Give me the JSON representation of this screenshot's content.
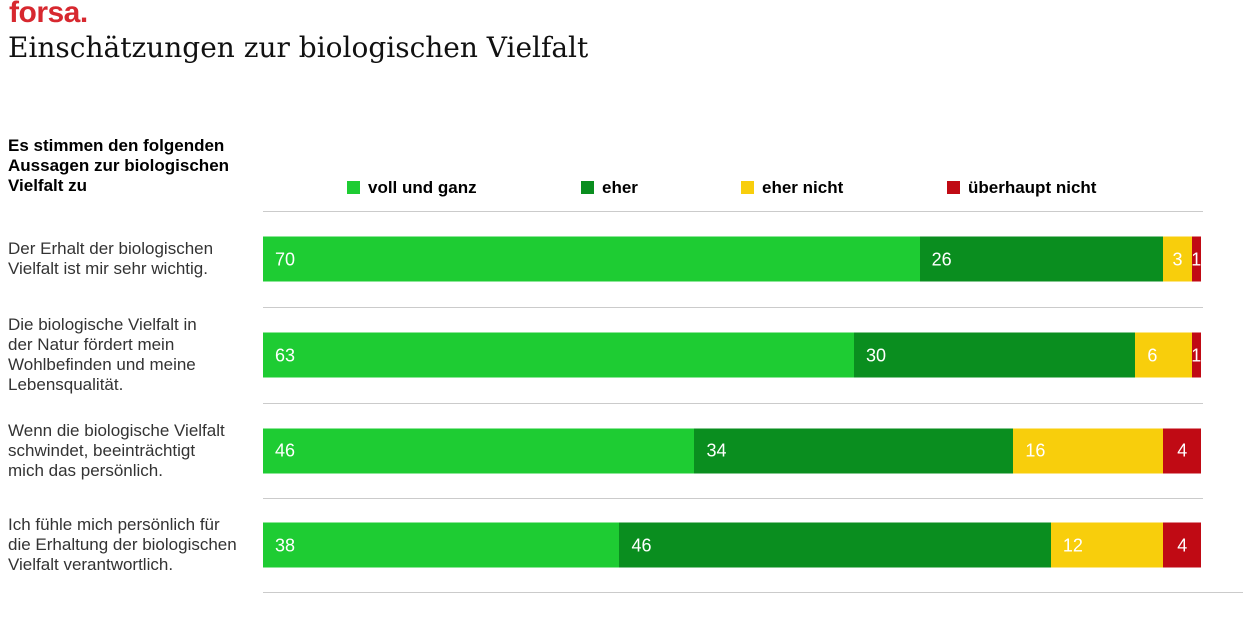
{
  "header": {
    "logo": "forsa.",
    "logo_color": "#D7282F",
    "title": "Einschätzungen zur biologischen Vielfalt"
  },
  "question": "Es stimmen den folgenden\nAussagen zur biologischen\nVielfalt zu",
  "chart_data": {
    "type": "bar",
    "variant": "stacked-horizontal",
    "unit": "percent",
    "xlim": [
      0,
      100
    ],
    "grid": false,
    "legend_position": "top",
    "title": "Einschätzungen zur biologischen Vielfalt",
    "categories": [
      "Der Erhalt der biologischen\nVielfalt ist mir sehr wichtig.",
      "Die biologische Vielfalt in\nder Natur fördert mein\nWohlbefinden und meine\nLebensqualität.",
      "Wenn die biologische Vielfalt\nschwindet, beeinträchtigt\nmich das persönlich.",
      "Ich fühle mich persönlich für\ndie Erhaltung der biologischen\nVielfalt verantwortlich."
    ],
    "series": [
      {
        "name": "voll und ganz",
        "color": "#1ECC33",
        "values": [
          70,
          63,
          46,
          38
        ]
      },
      {
        "name": "eher",
        "color": "#0A8E1F",
        "values": [
          26,
          30,
          34,
          46
        ]
      },
      {
        "name": "eher nicht",
        "color": "#F8CE0C",
        "values": [
          3,
          6,
          16,
          12
        ]
      },
      {
        "name": "überhaupt nicht",
        "color": "#C00A14",
        "values": [
          1,
          1,
          4,
          4
        ]
      }
    ]
  }
}
